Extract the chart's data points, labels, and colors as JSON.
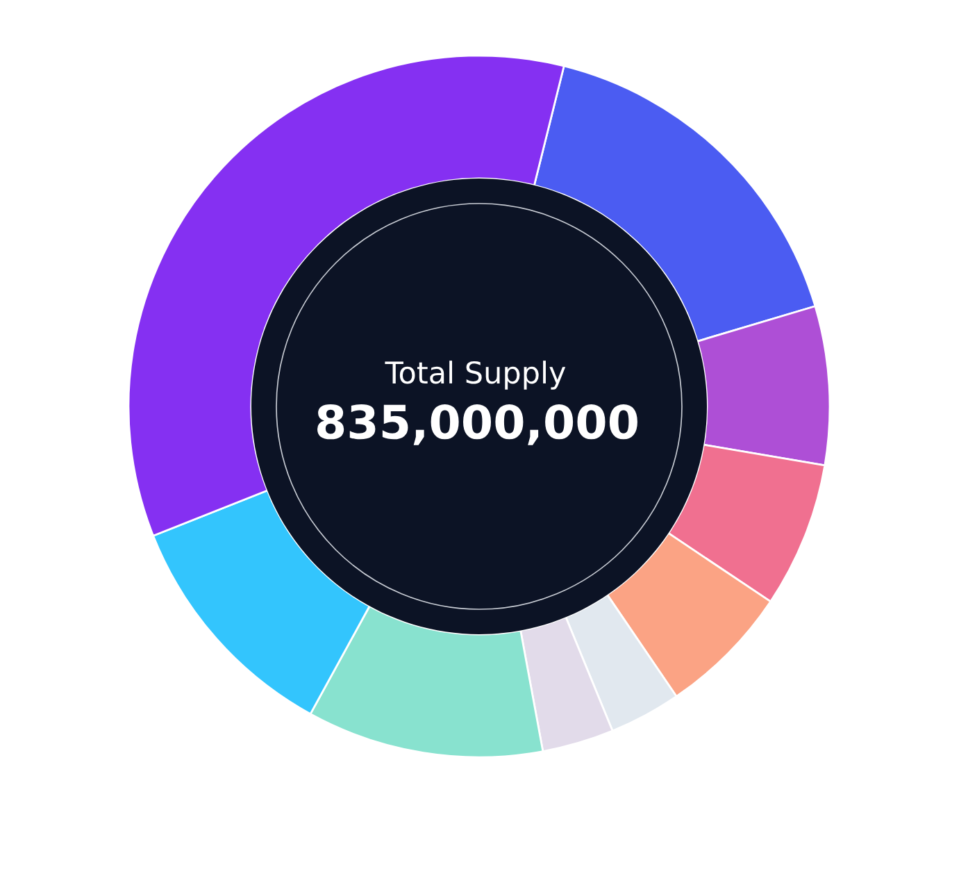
{
  "chart_data": {
    "type": "donut",
    "categories": [
      null,
      null,
      null,
      null,
      null,
      null,
      null,
      null,
      null
    ],
    "values": [
      16.5,
      7.3,
      6.7,
      6.1,
      3.3,
      3.3,
      10.9,
      11.0,
      34.9
    ],
    "colors": [
      "#4b5cf2",
      "#ae4fd6",
      "#f07090",
      "#fba384",
      "#e1e8ef",
      "#e2dbea",
      "#88e2cf",
      "#33c5fd",
      "#8530f2"
    ],
    "annotations": [
      "Total Supply",
      "835,000,000"
    ]
  }
}
